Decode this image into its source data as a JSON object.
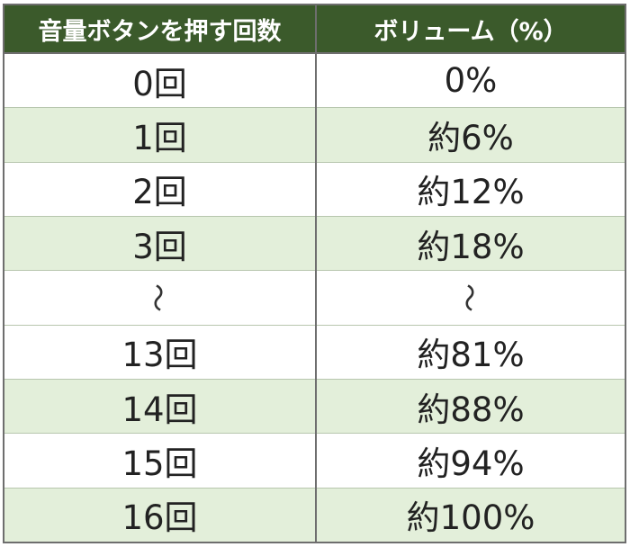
{
  "table": {
    "headers": [
      "音量ボタンを押す回数",
      "ボリューム（%）"
    ],
    "rows": [
      {
        "presses": "0回",
        "volume": "0%"
      },
      {
        "presses": "1回",
        "volume": "約6%"
      },
      {
        "presses": "2回",
        "volume": "約12%"
      },
      {
        "presses": "3回",
        "volume": "約18%"
      },
      {
        "presses": "〜",
        "volume": "〜"
      },
      {
        "presses": "13回",
        "volume": "約81%"
      },
      {
        "presses": "14回",
        "volume": "約88%"
      },
      {
        "presses": "15回",
        "volume": "約94%"
      },
      {
        "presses": "16回",
        "volume": "約100%"
      }
    ]
  },
  "colors": {
    "header_bg": "#3b5a2b",
    "header_text": "#ffffff",
    "shaded_row_bg": "#e3efda",
    "plain_row_bg": "#ffffff",
    "border": "#6e6e6e"
  }
}
